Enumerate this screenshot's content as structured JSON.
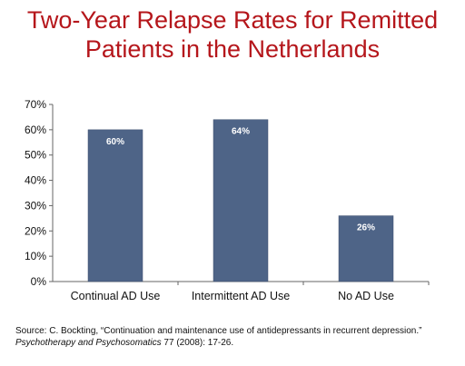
{
  "title": {
    "line1": "Two-Year Relapse Rates for Remitted",
    "line2": "Patients in the Netherlands"
  },
  "chart_data": {
    "type": "bar",
    "categories": [
      "Continual AD Use",
      "Intermittent AD Use",
      "No AD Use"
    ],
    "values": [
      60,
      64,
      26
    ],
    "data_labels": [
      "60%",
      "64%",
      "26%"
    ],
    "ylim": [
      0,
      70
    ],
    "yticks": [
      0,
      10,
      20,
      30,
      40,
      50,
      60,
      70
    ],
    "ytick_labels": [
      "0%",
      "10%",
      "20%",
      "30%",
      "40%",
      "50%",
      "60%",
      "70%"
    ],
    "grid": false,
    "bar_color": "#4e6487"
  },
  "source": {
    "line1": "Source: C. Bockting, “Continuation and maintenance use of antidepressants in recurrent depression.”",
    "journal": "Psychotherapy and Psychosomatics",
    "citation_rest": " 77 (2008): 17-26."
  }
}
